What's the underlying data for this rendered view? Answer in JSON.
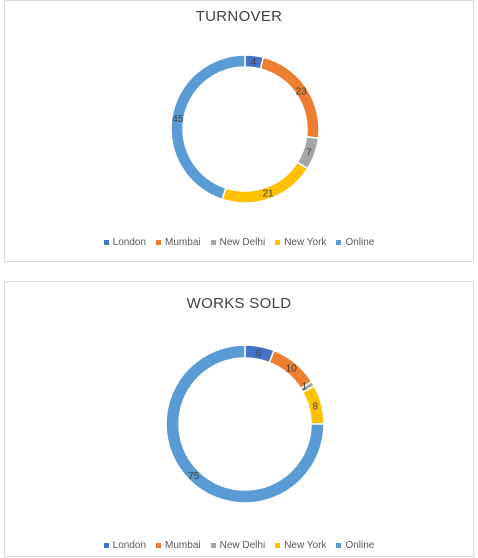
{
  "chart_data": [
    {
      "type": "pie",
      "donut": true,
      "title": "TURNOVER",
      "categories": [
        "London",
        "Mumbai",
        "New Delhi",
        "New York",
        "Online"
      ],
      "values": [
        4,
        23,
        7,
        21,
        45
      ],
      "data_labels": [
        "4",
        "23",
        "7",
        "21",
        "45"
      ],
      "colors": [
        "#4472c4",
        "#ed7d31",
        "#a5a5a5",
        "#ffc000",
        "#5b9bd5"
      ],
      "legend": "bottom"
    },
    {
      "type": "pie",
      "donut": true,
      "title": "WORKS SOLD",
      "categories": [
        "London",
        "Mumbai",
        "New Delhi",
        "New York",
        "Online"
      ],
      "values": [
        6,
        10,
        1,
        8,
        75
      ],
      "data_labels": [
        "6",
        "10",
        "1",
        "8",
        "75"
      ],
      "colors": [
        "#4472c4",
        "#ed7d31",
        "#a5a5a5",
        "#ffc000",
        "#5b9bd5"
      ],
      "legend": "bottom"
    }
  ]
}
